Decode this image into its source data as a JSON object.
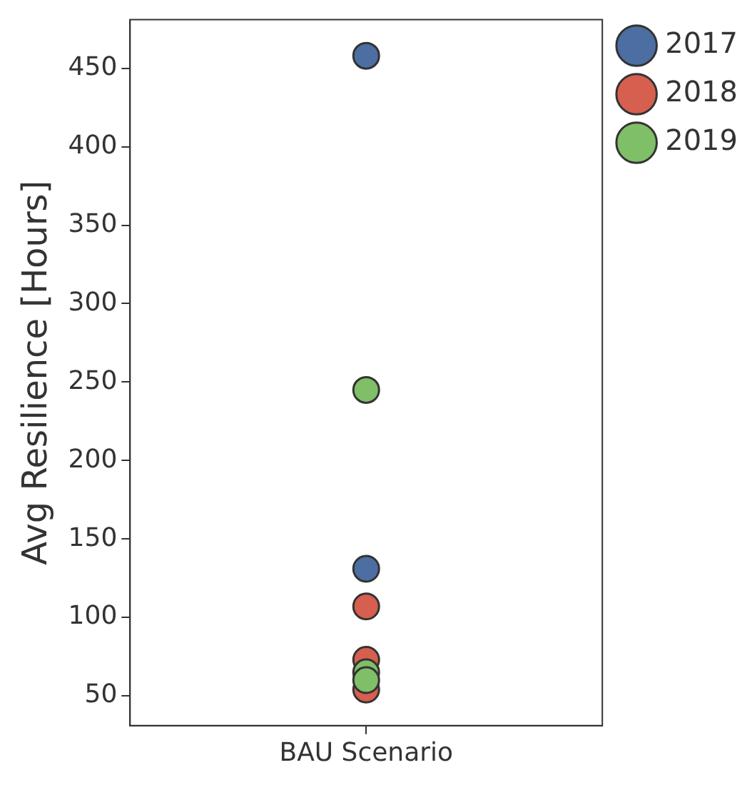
{
  "chart_data": {
    "type": "scatter",
    "ylabel": "Avg Resilience [Hours]",
    "categories": [
      "BAU Scenario"
    ],
    "series": [
      {
        "name": "2017",
        "color": "#4c6ea2",
        "x": [
          "BAU Scenario",
          "BAU Scenario"
        ],
        "values": [
          458,
          131
        ]
      },
      {
        "name": "2018",
        "color": "#d65f4f",
        "x": [
          "BAU Scenario",
          "BAU Scenario",
          "BAU Scenario"
        ],
        "values": [
          107,
          73,
          54
        ]
      },
      {
        "name": "2019",
        "color": "#7fbf68",
        "x": [
          "BAU Scenario",
          "BAU Scenario",
          "BAU Scenario"
        ],
        "values": [
          245,
          65,
          60
        ]
      }
    ],
    "ylim": [
      31,
      481
    ],
    "yticks": [
      50,
      100,
      150,
      200,
      250,
      300,
      350,
      400,
      450
    ],
    "grid": false,
    "legend": "top right",
    "marker": "circle"
  }
}
